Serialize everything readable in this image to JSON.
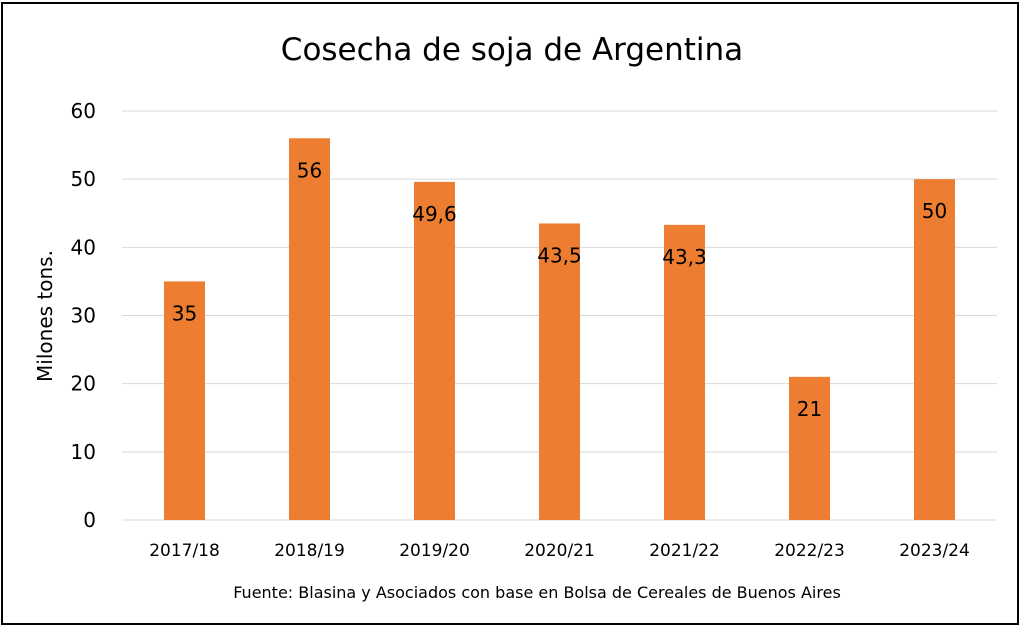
{
  "chart_data": {
    "type": "bar",
    "title": "Cosecha de soja de Argentina",
    "xlabel": "",
    "ylabel": "Milones tons.",
    "ylim": [
      0,
      60
    ],
    "yticks": [
      0,
      10,
      20,
      30,
      40,
      50,
      60
    ],
    "categories": [
      "2017/18",
      "2018/19",
      "2019/20",
      "2020/21",
      "2021/22",
      "2022/23",
      "2023/24"
    ],
    "values": [
      35,
      56,
      49.6,
      43.5,
      43.3,
      21,
      50
    ],
    "data_labels": [
      "35",
      "56",
      "49,6",
      "43,5",
      "43,3",
      "21",
      "50"
    ],
    "grid": true,
    "legend": "none",
    "bar_color": "#ED7D31",
    "grid_color": "#D9D9D9",
    "source": "Fuente: Blasina y Asociados con base en Bolsa de Cereales de Buenos Aires"
  }
}
